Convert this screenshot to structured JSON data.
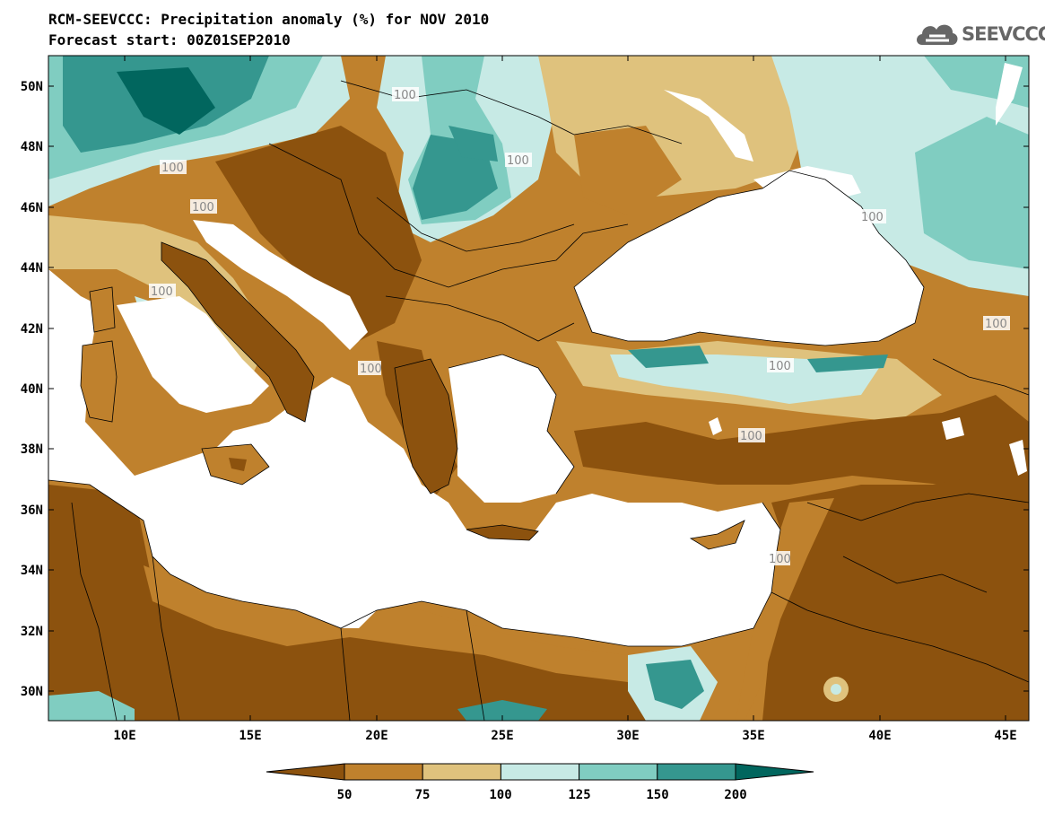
{
  "title_line1": "RCM-SEEVCCC: Precipitation anomaly (%) for NOV 2010",
  "title_line2": "Forecast start: 00Z01SEP2010",
  "logo_text": "SEEVCCC",
  "lat_labels": [
    "50N",
    "48N",
    "46N",
    "44N",
    "42N",
    "40N",
    "38N",
    "36N",
    "34N",
    "32N",
    "30N"
  ],
  "lon_labels": [
    "10E",
    "15E",
    "20E",
    "25E",
    "30E",
    "35E",
    "40E",
    "45E"
  ],
  "legend": {
    "labels": [
      "50",
      "75",
      "100",
      "125",
      "150",
      "200"
    ],
    "colors": [
      "#8c520e",
      "#bf812d",
      "#dfc27d",
      "#c7eae5",
      "#80cdc1",
      "#35978f",
      "#01665e"
    ]
  },
  "contour_labels": [
    "100",
    "100",
    "100",
    "100",
    "100",
    "100",
    "100",
    "100",
    "100",
    "100",
    "100"
  ]
}
